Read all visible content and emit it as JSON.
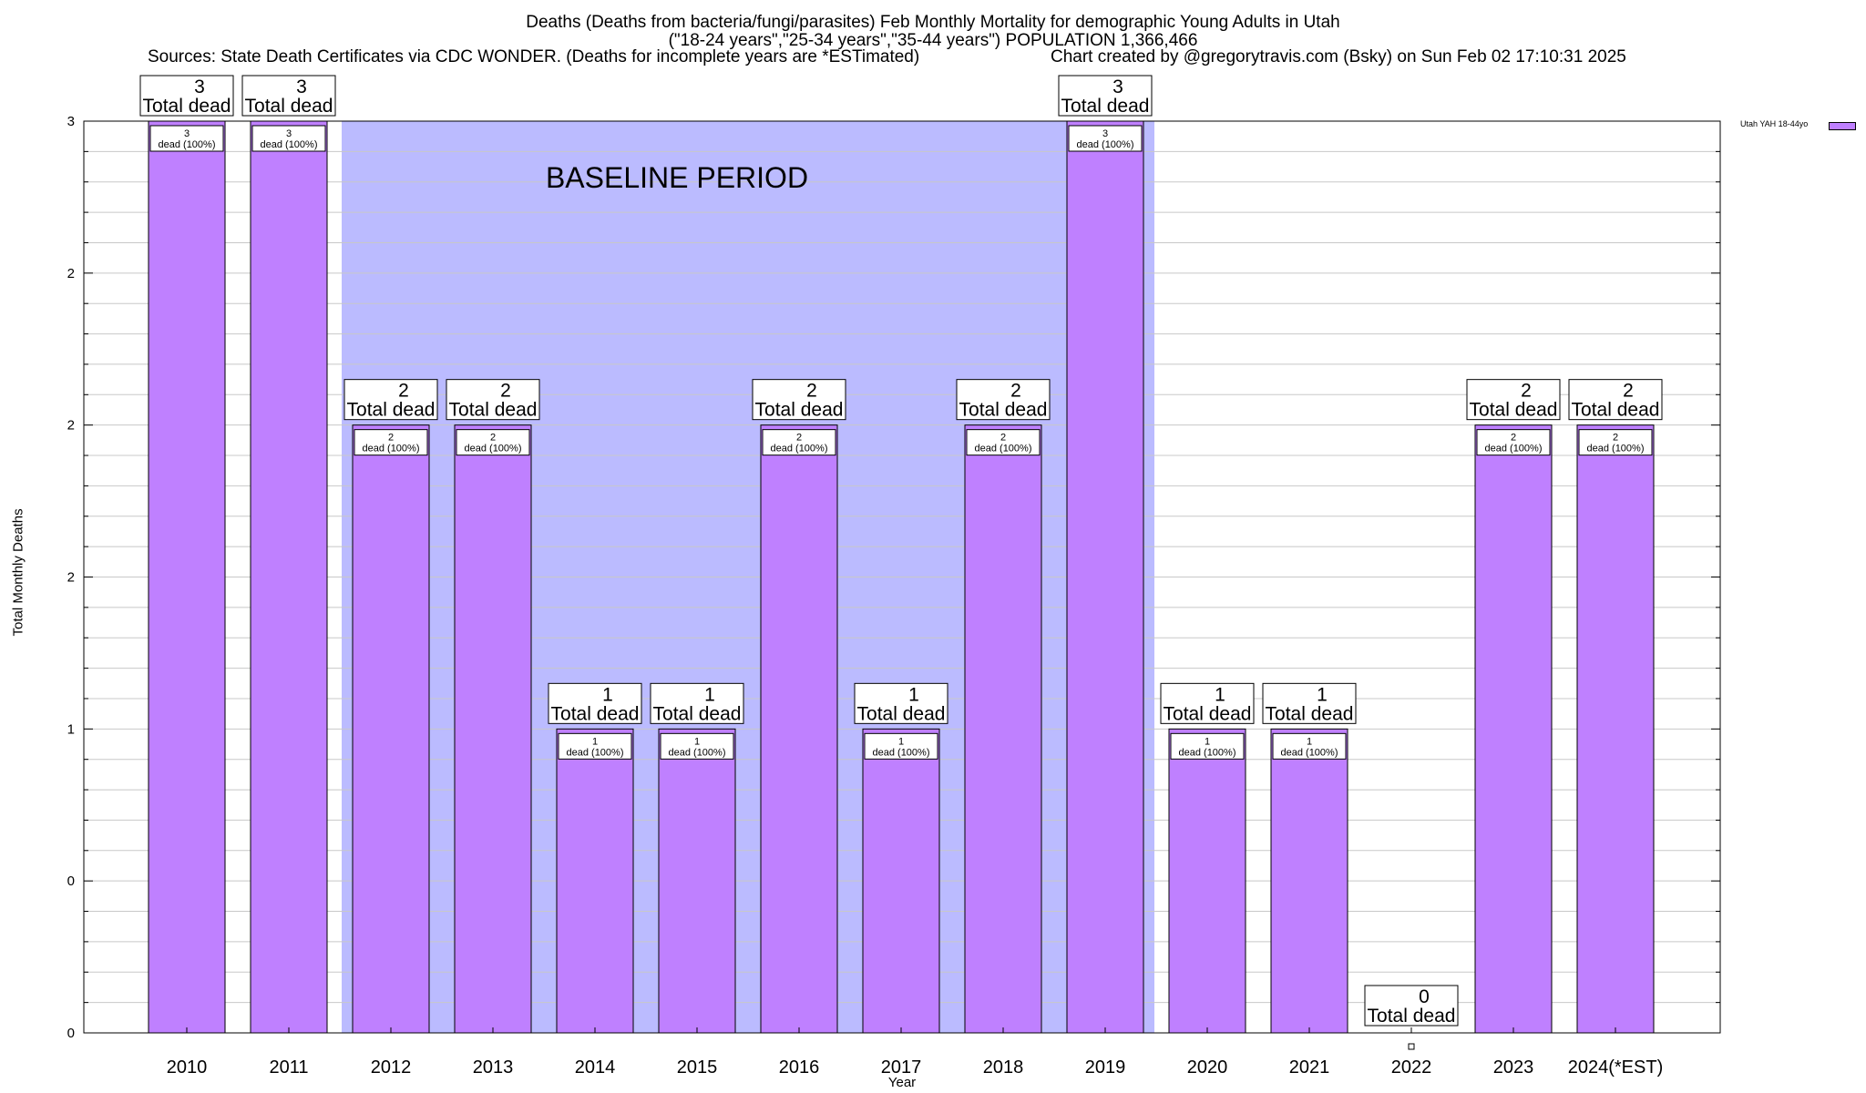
{
  "chart_data": {
    "type": "bar",
    "title": "Deaths (Deaths from bacteria/fungi/parasites) Feb Monthly Mortality for demographic Young Adults in Utah",
    "title2": "(\"18-24 years\",\"25-34 years\",\"35-44 years\") POPULATION 1,366,466",
    "sources": "Sources: State Death Certificates via CDC WONDER. (Deaths for incomplete years are *ESTimated)",
    "credit": "Chart created by @gregorytravis.com (Bsky) on Sun Feb 02 17:10:31 2025",
    "xlabel": "Year",
    "ylabel": "Total Monthly Deaths",
    "ylim": [
      0,
      3
    ],
    "ytick_values": [
      0,
      0.5,
      1,
      1.5,
      2,
      2.5,
      3
    ],
    "ytick_labels": [
      "0",
      "0",
      "1",
      "2",
      "2",
      "2",
      "3"
    ],
    "categories": [
      "2010",
      "2011",
      "2012",
      "2013",
      "2014",
      "2015",
      "2016",
      "2017",
      "2018",
      "2019",
      "2020",
      "2021",
      "2022",
      "2023",
      "2024(*EST)"
    ],
    "values": [
      3,
      3,
      2,
      2,
      1,
      1,
      2,
      1,
      2,
      3,
      1,
      1,
      0,
      2,
      2
    ],
    "series_name": "Utah YAH 18-44yo",
    "series_color": "#bf80ff",
    "baseline_label": "BASELINE PERIOD",
    "baseline_start": "2012",
    "baseline_end": "2019",
    "baseline_color": "#bbbbff",
    "total_label_text": "Total dead",
    "inner_label_suffix": "dead (100%)"
  }
}
